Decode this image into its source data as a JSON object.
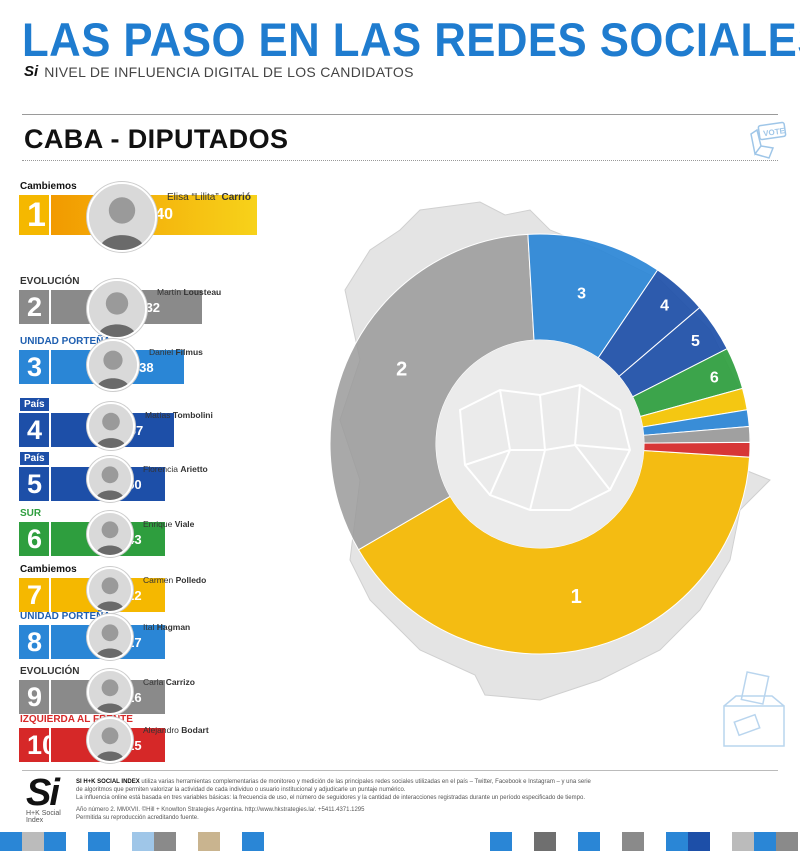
{
  "header": {
    "title": "LAS PASO EN LAS REDES SOCIALES",
    "logo_text": "Si",
    "subtitle": "NIVEL DE INFLUENCIA DIGITAL DE LOS CANDIDATOS",
    "section": "CABA - DIPUTADOS",
    "vote_badge": "VOTE"
  },
  "candidates": [
    {
      "rank": "1",
      "party": "Cambiemos",
      "first": "Elisa “Lilita”",
      "last": "Carrió",
      "si_label": "Si",
      "score": "540",
      "color": "#f5b800",
      "party_color": "#111111"
    },
    {
      "rank": "2",
      "party": "EVOLUCIÓN",
      "first": "Martín",
      "last": "Lousteau",
      "si_label": "Si",
      "score": "432",
      "color": "#8a8a8a",
      "party_color": "#333333"
    },
    {
      "rank": "3",
      "party": "UNIDAD PORTEÑA",
      "first": "Daniel",
      "last": "Filmus",
      "si_label": "Si",
      "score": "138",
      "color": "#2a86d6",
      "party_color": "#1f5fb0"
    },
    {
      "rank": "4",
      "party": "País",
      "first": "Matías",
      "last": "Tombolini",
      "si_label": "Si",
      "score": "57",
      "color": "#1d4fa8",
      "party_color": "#ffffff"
    },
    {
      "rank": "5",
      "party": "País",
      "first": "Florencia",
      "last": "Arietto",
      "si_label": "Si",
      "score": "50",
      "color": "#1d4fa8",
      "party_color": "#ffffff"
    },
    {
      "rank": "6",
      "party": "SUR",
      "first": "Enrique",
      "last": "Viale",
      "si_label": "Si",
      "score": "43",
      "color": "#2e9e3e",
      "party_color": "#2e9e3e"
    },
    {
      "rank": "7",
      "party": "Cambiemos",
      "first": "Carmen",
      "last": "Polledo",
      "si_label": "Si",
      "score": "22",
      "color": "#f5b800",
      "party_color": "#111111"
    },
    {
      "rank": "8",
      "party": "UNIDAD PORTEÑA",
      "first": "Ital",
      "last": "Hagman",
      "si_label": "Si",
      "score": "17",
      "color": "#2a86d6",
      "party_color": "#1f5fb0"
    },
    {
      "rank": "9",
      "party": "EVOLUCIÓN",
      "first": "Carla",
      "last": "Carrizo",
      "si_label": "Si",
      "score": "16",
      "color": "#8a8a8a",
      "party_color": "#333333"
    },
    {
      "rank": "10",
      "party": "IZQUIERDA AL FRENTE",
      "first": "Alejandro",
      "last": "Bodart",
      "si_label": "Si",
      "score": "15",
      "color": "#d62828",
      "party_color": "#d62828"
    }
  ],
  "chart_data": {
    "type": "pie",
    "variant": "donut",
    "title": "CABA - DIPUTADOS",
    "categories": [
      "1",
      "2",
      "3",
      "4",
      "5",
      "6",
      "7",
      "8",
      "9",
      "10"
    ],
    "values": [
      540,
      432,
      138,
      57,
      50,
      43,
      22,
      17,
      16,
      15
    ],
    "colors": [
      "#f5b800",
      "#9a9a9a",
      "#2a86d6",
      "#1d4fa8",
      "#1d4fa8",
      "#2e9e3e",
      "#f5c400",
      "#2a86d6",
      "#9a9a9a",
      "#d62828"
    ],
    "labels_shown": [
      "1",
      "2",
      "3",
      "4",
      "5",
      "6"
    ]
  },
  "footer": {
    "logo_big": "Si",
    "logo_small": "H+K Social Index",
    "brand": "SI H+K SOCIAL INDEX",
    "line1": "utiliza varias herramientas complementarias de monitoreo y medición de las principales redes sociales utilizadas en el país – Twitter, Facebook e Instagram – y una serie de algoritmos que permiten valorizar la actividad de cada individuo o usuario institucional y adjudicarle un puntaje numérico.",
    "line2": "La influencia online está basada en tres variables básicas: la frecuencia de uso, el número de seguidores y la cantidad de interacciones registradas durante un período especificado de tiempo.",
    "line3": "Año número 2. MMXVII. ©Hill + Knowlton Strategies Argentina. http://www.hkstrategies.la/. +5411.4371.1295",
    "line4": "Permitida su reproducción acreditando fuente."
  }
}
